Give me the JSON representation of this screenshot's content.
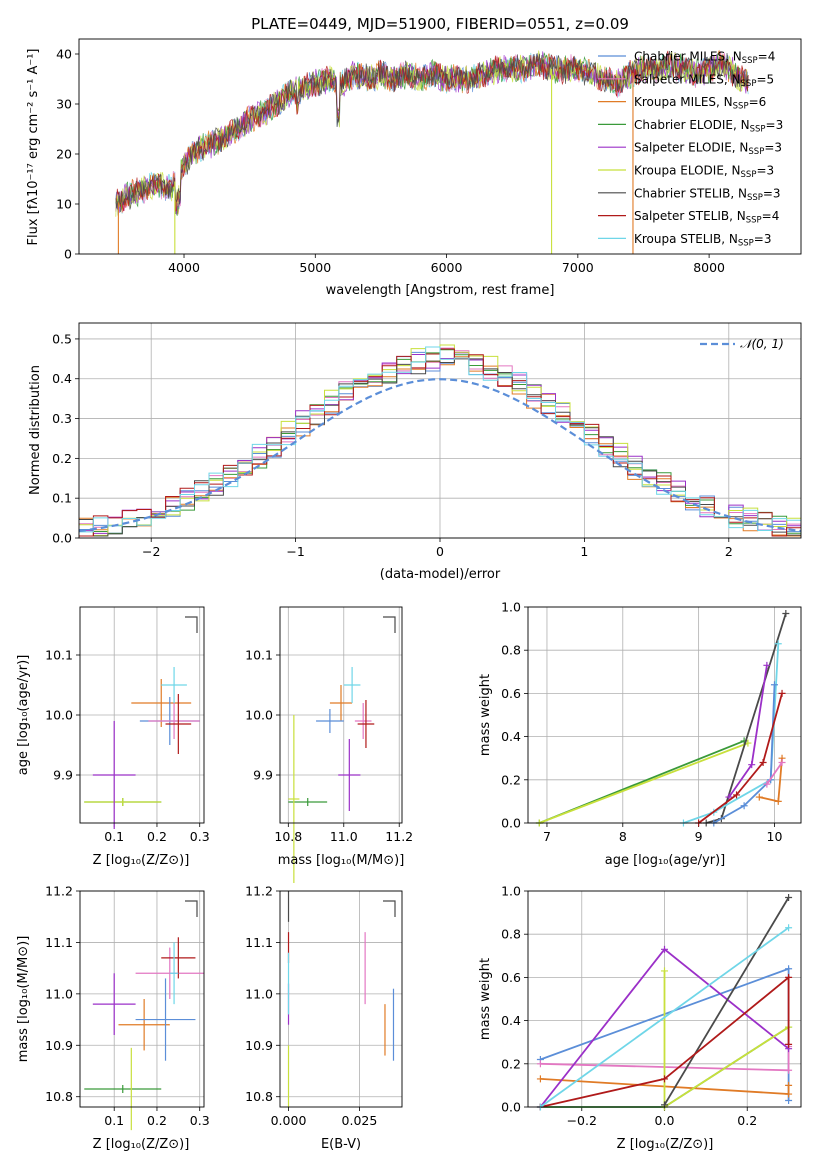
{
  "title": "PLATE=0449, MJD=51900, FIBERID=0551, z=0.09",
  "colors": {
    "chabrier_miles": "#5b8ed8",
    "salpeter_miles": "#e377c2",
    "kroupa_miles": "#e07b26",
    "chabrier_elodie": "#3a9a3a",
    "salpeter_elodie": "#9b30c8",
    "kroupa_elodie": "#c8e03c",
    "chabrier_stelib": "#4a4a4a",
    "salpeter_stelib": "#b01a1a",
    "kroupa_stelib": "#6fd6e8",
    "normal_curve": "#5b8ed8",
    "grid": "#b0b0b0"
  },
  "spectrum_panel": {
    "xlabel": "wavelength [Angstrom, rest frame]",
    "ylabel": "Flux [fλ10⁻¹⁷ erg cm⁻² s⁻¹ A⁻¹]",
    "xticks": [
      "4000",
      "5000",
      "6000",
      "7000",
      "8000"
    ],
    "yticks": [
      "0",
      "10",
      "20",
      "30",
      "40"
    ],
    "legend": [
      {
        "label": "Chabrier MILES, N",
        "sub": "SSP",
        "tail": "=4"
      },
      {
        "label": "Salpeter MILES, N",
        "sub": "SSP",
        "tail": "=5"
      },
      {
        "label": "Kroupa MILES, N",
        "sub": "SSP",
        "tail": "=6"
      },
      {
        "label": "Chabrier ELODIE, N",
        "sub": "SSP",
        "tail": "=3"
      },
      {
        "label": "Salpeter ELODIE, N",
        "sub": "SSP",
        "tail": "=3"
      },
      {
        "label": "Kroupa ELODIE, N",
        "sub": "SSP",
        "tail": "=3"
      },
      {
        "label": "Chabrier STELIB, N",
        "sub": "SSP",
        "tail": "=3"
      },
      {
        "label": "Salpeter STELIB, N",
        "sub": "SSP",
        "tail": "=4"
      },
      {
        "label": "Kroupa STELIB, N",
        "sub": "SSP",
        "tail": "=3"
      }
    ]
  },
  "residual_panel": {
    "xlabel": "(data-model)/error",
    "ylabel": "Normed distribution",
    "xticks": [
      "−2",
      "−1",
      "0",
      "1",
      "2"
    ],
    "yticks": [
      "0.0",
      "0.1",
      "0.2",
      "0.3",
      "0.4",
      "0.5"
    ],
    "legend_label": "𝒩(0, 1)"
  },
  "small_panels": {
    "z_age": {
      "xlabel": "Z [log₁₀(Z/Z⊙)]",
      "ylabel": "age  [log₁₀(age/yr)]",
      "xticks": [
        "0.1",
        "0.2",
        "0.3"
      ],
      "yticks": [
        "9.9",
        "10.0",
        "10.1"
      ]
    },
    "mass_age": {
      "xlabel": "mass [log₁₀(M/M⊙)]",
      "xticks": [
        "10.8",
        "11.0",
        "11.2"
      ],
      "yticks": [
        "9.9",
        "10.0",
        "10.1"
      ]
    },
    "z_mass": {
      "xlabel": "Z [log₁₀(Z/Z⊙)]",
      "ylabel": "mass [log₁₀(M/M⊙)]",
      "xticks": [
        "0.1",
        "0.2",
        "0.3"
      ],
      "yticks": [
        "10.8",
        "10.9",
        "11.0",
        "11.1",
        "11.2"
      ]
    },
    "ebv_mass": {
      "xlabel": "E(B-V)",
      "xticks": [
        "0.000",
        "0.025"
      ],
      "yticks": [
        "10.8",
        "10.9",
        "11.0",
        "11.1",
        "11.2"
      ]
    },
    "age_weight": {
      "xlabel": "age  [log₁₀(age/yr)]",
      "ylabel": "mass weight",
      "xticks": [
        "7",
        "8",
        "9",
        "10"
      ],
      "yticks": [
        "0.0",
        "0.2",
        "0.4",
        "0.6",
        "0.8",
        "1.0"
      ]
    },
    "z_weight": {
      "xlabel": "Z [log₁₀(Z/Z⊙)]",
      "ylabel": "mass weight",
      "xticks": [
        "−0.2",
        "0.0",
        "0.2"
      ],
      "yticks": [
        "0.0",
        "0.2",
        "0.4",
        "0.6",
        "0.8",
        "1.0"
      ]
    }
  },
  "chart_data": [
    {
      "type": "line",
      "title": "PLATE=0449, MJD=51900, FIBERID=0551, z=0.09",
      "xlabel": "wavelength [Angstrom, rest frame]",
      "xlim": [
        3200,
        8700
      ],
      "ylim": [
        0,
        43
      ],
      "series": [
        {
          "name": "Chabrier MILES, N_SSP=4",
          "color": "#5b8ed8"
        },
        {
          "name": "Salpeter MILES, N_SSP=5",
          "color": "#e377c2"
        },
        {
          "name": "Kroupa MILES, N_SSP=6",
          "color": "#e07b26"
        },
        {
          "name": "Chabrier ELODIE, N_SSP=3",
          "color": "#3a9a3a"
        },
        {
          "name": "Salpeter ELODIE, N_SSP=3",
          "color": "#9b30c8"
        },
        {
          "name": "Kroupa ELODIE, N_SSP=3",
          "color": "#c8e03c"
        },
        {
          "name": "Chabrier STELIB, N_SSP=3",
          "color": "#4a4a4a"
        },
        {
          "name": "Salpeter STELIB, N_SSP=4",
          "color": "#b01a1a"
        },
        {
          "name": "Kroupa STELIB, N_SSP=3",
          "color": "#6fd6e8"
        }
      ],
      "continuum": {
        "x": [
          3480,
          3600,
          3700,
          3800,
          3900,
          4000,
          4100,
          4200,
          4300,
          4400,
          4500,
          4600,
          4700,
          4800,
          4900,
          5000,
          5100,
          5200,
          5300,
          5400,
          5500,
          5600,
          5700,
          5800,
          5900,
          6000,
          6100,
          6200,
          6300,
          6400,
          6500,
          6600,
          6700,
          6800,
          6900,
          7000,
          7100,
          7200,
          7300,
          7400,
          7500,
          7600,
          7700,
          7800,
          7900,
          8000,
          8100,
          8200,
          8300
        ],
        "y": [
          10,
          12,
          13,
          14,
          13,
          18,
          21,
          22,
          23,
          25,
          27,
          28,
          30,
          32,
          33,
          34,
          35,
          34,
          36,
          35,
          36,
          35,
          36,
          35,
          36,
          35,
          35,
          35,
          36,
          37,
          37,
          37,
          38,
          37,
          37,
          37,
          36,
          35,
          34,
          36,
          37,
          37,
          38,
          37,
          36,
          37,
          38,
          36,
          34
        ]
      },
      "dips": [
        {
          "x": 3500,
          "color": "#e07b26"
        },
        {
          "x": 3930,
          "color": "#c8e03c"
        },
        {
          "x": 6800,
          "color": "#c8e03c"
        },
        {
          "x": 7420,
          "color": "#e07b26"
        }
      ]
    },
    {
      "type": "area",
      "xlabel": "(data-model)/error",
      "ylabel": "Normed distribution",
      "xlim": [
        -2.5,
        2.5
      ],
      "ylim": [
        0,
        0.54
      ],
      "bin_width": 0.1,
      "histograms": [
        {
          "name": "Chabrier MILES",
          "color": "#5b8ed8",
          "offset": 0.01
        },
        {
          "name": "Salpeter MILES",
          "color": "#e377c2",
          "offset": 0.03
        },
        {
          "name": "Kroupa MILES",
          "color": "#e07b26",
          "offset": 0.0
        },
        {
          "name": "Chabrier ELODIE",
          "color": "#3a9a3a",
          "offset": 0.02
        },
        {
          "name": "Salpeter ELODIE",
          "color": "#9b30c8",
          "offset": 0.04
        },
        {
          "name": "Kroupa ELODIE",
          "color": "#c8e03c",
          "offset": 0.05
        },
        {
          "name": "Chabrier STELIB",
          "color": "#4a4a4a",
          "offset": 0.015
        },
        {
          "name": "Salpeter STELIB",
          "color": "#b01a1a",
          "offset": 0.025
        },
        {
          "name": "Kroupa STELIB",
          "color": "#6fd6e8",
          "offset": 0.035
        }
      ],
      "normal_curve": {
        "mu": 0,
        "sigma": 1,
        "label": "N(0, 1)"
      }
    },
    {
      "type": "scatter",
      "xlabel": "Z [log10(Z/Z_sun)]",
      "ylabel": "age [log10(age/yr)]",
      "xlim": [
        0.02,
        0.31
      ],
      "ylim": [
        9.82,
        10.18
      ],
      "points": [
        {
          "color": "#3a9a3a",
          "x": 0.12,
          "y": 9.855,
          "xerr": 0.09,
          "yerr": 0.0
        },
        {
          "color": "#c8e03c",
          "x": 0.12,
          "y": 9.855,
          "xerr": 0.09,
          "yerr": 0.0
        },
        {
          "color": "#9b30c8",
          "x": 0.1,
          "y": 9.9,
          "xerr": 0.05,
          "yerr": 0.09
        },
        {
          "color": "#e07b26",
          "x": 0.21,
          "y": 10.02,
          "xerr": 0.07,
          "yerr": 0.04
        },
        {
          "color": "#5b8ed8",
          "x": 0.23,
          "y": 9.99,
          "xerr": 0.07,
          "yerr": 0.04
        },
        {
          "color": "#e377c2",
          "x": 0.24,
          "y": 9.99,
          "xerr": 0.06,
          "yerr": 0.03
        },
        {
          "color": "#b01a1a",
          "x": 0.25,
          "y": 9.985,
          "xerr": 0.03,
          "yerr": 0.05
        },
        {
          "color": "#6fd6e8",
          "x": 0.24,
          "y": 10.05,
          "xerr": 0.03,
          "yerr": 0.03
        }
      ]
    },
    {
      "type": "scatter",
      "xlabel": "mass [log10(M/M_sun)]",
      "xlim": [
        10.77,
        11.21
      ],
      "ylim": [
        9.82,
        10.18
      ],
      "points": [
        {
          "color": "#3a9a3a",
          "x": 10.87,
          "y": 9.855,
          "xerr": 0.07,
          "yerr": 0.0
        },
        {
          "color": "#c8e03c",
          "x": 10.82,
          "y": 9.86,
          "xerr": 0.02,
          "yerr": 0.14
        },
        {
          "color": "#9b30c8",
          "x": 11.02,
          "y": 9.9,
          "xerr": 0.04,
          "yerr": 0.06
        },
        {
          "color": "#e07b26",
          "x": 10.99,
          "y": 10.02,
          "xerr": 0.04,
          "yerr": 0.03
        },
        {
          "color": "#5b8ed8",
          "x": 10.95,
          "y": 9.99,
          "xerr": 0.05,
          "yerr": 0.02
        },
        {
          "color": "#e377c2",
          "x": 11.07,
          "y": 9.99,
          "xerr": 0.03,
          "yerr": 0.03
        },
        {
          "color": "#b01a1a",
          "x": 11.08,
          "y": 9.985,
          "xerr": 0.03,
          "yerr": 0.04
        },
        {
          "color": "#6fd6e8",
          "x": 11.03,
          "y": 10.05,
          "xerr": 0.03,
          "yerr": 0.03
        }
      ]
    },
    {
      "type": "line",
      "xlabel": "age [log10(age/yr)]",
      "ylabel": "mass weight",
      "xlim": [
        6.75,
        10.35
      ],
      "ylim": [
        0,
        1.0
      ],
      "series": [
        {
          "color": "#3a9a3a",
          "x": [
            6.9,
            9.6
          ],
          "y": [
            0.0,
            0.38
          ]
        },
        {
          "color": "#c8e03c",
          "x": [
            6.9,
            9.65
          ],
          "y": [
            0.0,
            0.37
          ]
        },
        {
          "color": "#4a4a4a",
          "x": [
            9.1,
            9.3,
            10.15
          ],
          "y": [
            0.0,
            0.02,
            0.97
          ]
        },
        {
          "color": "#6fd6e8",
          "x": [
            8.8,
            9.2,
            9.95,
            10.05
          ],
          "y": [
            0.0,
            0.05,
            0.2,
            0.83
          ]
        },
        {
          "color": "#5b8ed8",
          "x": [
            9.2,
            9.6,
            9.95,
            10.0
          ],
          "y": [
            0.0,
            0.08,
            0.2,
            0.64
          ]
        },
        {
          "color": "#9b30c8",
          "x": [
            9.4,
            9.7,
            9.9
          ],
          "y": [
            0.12,
            0.27,
            0.73
          ]
        },
        {
          "color": "#b01a1a",
          "x": [
            9.0,
            9.5,
            9.85,
            10.1
          ],
          "y": [
            0.0,
            0.13,
            0.28,
            0.6
          ]
        },
        {
          "color": "#e07b26",
          "x": [
            9.8,
            10.05,
            10.1
          ],
          "y": [
            0.12,
            0.1,
            0.3
          ]
        },
        {
          "color": "#e377c2",
          "x": [
            9.9,
            10.1
          ],
          "y": [
            0.18,
            0.28
          ]
        }
      ]
    },
    {
      "type": "scatter",
      "xlabel": "Z [log10(Z/Z_sun)]",
      "ylabel": "mass [log10(M/M_sun)]",
      "xlim": [
        0.02,
        0.31
      ],
      "ylim": [
        10.78,
        11.2
      ],
      "points": [
        {
          "color": "#3a9a3a",
          "x": 0.12,
          "y": 10.815,
          "xerr": 0.09,
          "yerr": 0.0
        },
        {
          "color": "#c8e03c",
          "x": 0.14,
          "y": 10.815,
          "xerr": 0.0,
          "yerr": 0.08
        },
        {
          "color": "#9b30c8",
          "x": 0.1,
          "y": 10.98,
          "xerr": 0.05,
          "yerr": 0.06
        },
        {
          "color": "#e07b26",
          "x": 0.17,
          "y": 10.94,
          "xerr": 0.06,
          "yerr": 0.05
        },
        {
          "color": "#5b8ed8",
          "x": 0.22,
          "y": 10.95,
          "xerr": 0.07,
          "yerr": 0.08
        },
        {
          "color": "#e377c2",
          "x": 0.23,
          "y": 11.04,
          "xerr": 0.08,
          "yerr": 0.05
        },
        {
          "color": "#b01a1a",
          "x": 0.25,
          "y": 11.07,
          "xerr": 0.04,
          "yerr": 0.04
        },
        {
          "color": "#6fd6e8",
          "x": 0.24,
          "y": 11.04,
          "xerr": 0.01,
          "yerr": 0.06
        }
      ]
    },
    {
      "type": "scatter",
      "xlabel": "E(B-V)",
      "xlim": [
        -0.003,
        0.04
      ],
      "ylim": [
        10.78,
        11.2
      ],
      "points": [
        {
          "color": "#4a4a4a",
          "x": 0.0,
          "y": 11.17,
          "xerr": 0.0,
          "yerr": 0.03
        },
        {
          "color": "#b01a1a",
          "x": 0.0,
          "y": 11.09,
          "xerr": 0.0,
          "yerr": 0.03
        },
        {
          "color": "#9b30c8",
          "x": 0.0,
          "y": 10.98,
          "xerr": 0.0,
          "yerr": 0.04
        },
        {
          "color": "#6fd6e8",
          "x": 0.0,
          "y": 11.02,
          "xerr": 0.0,
          "yerr": 0.06
        },
        {
          "color": "#c8e03c",
          "x": 0.0,
          "y": 10.84,
          "xerr": 0.0,
          "yerr": 0.06
        },
        {
          "color": "#e377c2",
          "x": 0.027,
          "y": 11.05,
          "xerr": 0.0,
          "yerr": 0.07
        },
        {
          "color": "#e07b26",
          "x": 0.034,
          "y": 10.93,
          "xerr": 0.0,
          "yerr": 0.05
        },
        {
          "color": "#5b8ed8",
          "x": 0.037,
          "y": 10.94,
          "xerr": 0.0,
          "yerr": 0.07
        }
      ]
    },
    {
      "type": "line",
      "xlabel": "Z [log10(Z/Z_sun)]",
      "ylabel": "mass weight",
      "xlim": [
        -0.33,
        0.33
      ],
      "ylim": [
        0,
        1.0
      ],
      "series": [
        {
          "color": "#5b8ed8",
          "x": [
            -0.3,
            0.3,
            0.3
          ],
          "y": [
            0.22,
            0.64,
            0.03
          ]
        },
        {
          "color": "#e377c2",
          "x": [
            -0.3,
            0.3,
            0.3
          ],
          "y": [
            0.2,
            0.17,
            0.28
          ]
        },
        {
          "color": "#e07b26",
          "x": [
            -0.3,
            0.3,
            0.3
          ],
          "y": [
            0.13,
            0.06,
            0.1
          ]
        },
        {
          "color": "#3a9a3a",
          "x": [
            -0.3,
            0.0,
            0.3
          ],
          "y": [
            0.0,
            0.0,
            0.37
          ]
        },
        {
          "color": "#9b30c8",
          "x": [
            -0.3,
            0.0,
            0.3
          ],
          "y": [
            0.0,
            0.73,
            0.27
          ]
        },
        {
          "color": "#c8e03c",
          "x": [
            0.0,
            0.0,
            0.3
          ],
          "y": [
            0.63,
            0.0,
            0.37
          ]
        },
        {
          "color": "#4a4a4a",
          "x": [
            0.0,
            0.3
          ],
          "y": [
            0.01,
            0.97
          ]
        },
        {
          "color": "#b01a1a",
          "x": [
            -0.3,
            0.0,
            0.3,
            0.3
          ],
          "y": [
            0.0,
            0.13,
            0.6,
            0.29
          ]
        },
        {
          "color": "#6fd6e8",
          "x": [
            -0.3,
            0.3
          ],
          "y": [
            0.0,
            0.83
          ]
        }
      ]
    }
  ]
}
